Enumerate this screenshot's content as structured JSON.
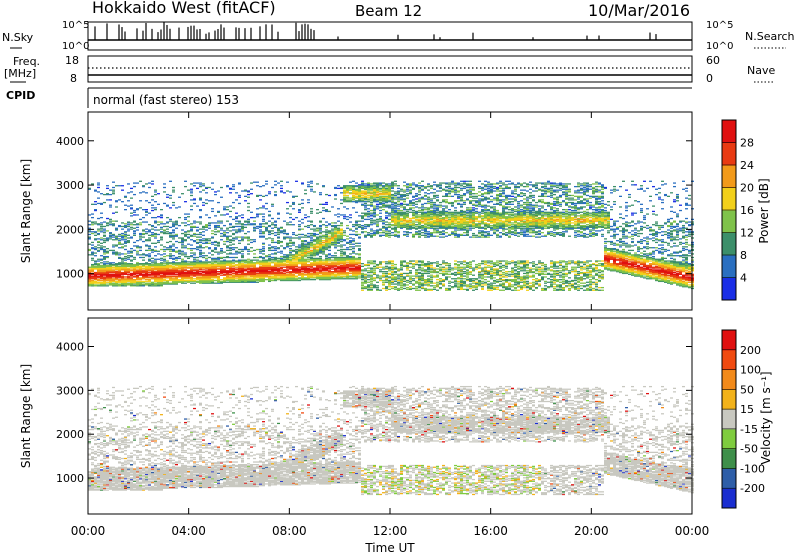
{
  "header": {
    "station": "Hokkaido West (fitACF)",
    "beam": "Beam 12",
    "date": "10/Mar/2016"
  },
  "top_panels": {
    "nsky_label": "N.Sky",
    "nsearch_label": "N.Search",
    "nsky_ticks": [
      "10^5",
      "10^0"
    ],
    "nsearch_ticks": [
      "10^5",
      "10^0"
    ],
    "freq_label_line1": "Freq.",
    "freq_label_line2": "[MHz]",
    "freq_ticks": [
      "18",
      "8"
    ],
    "nave_label": "Nave",
    "nave_ticks": [
      "60",
      "0"
    ],
    "cpid_label": "CPID",
    "cpid_text": "normal (fast stereo) 153"
  },
  "chart_data": [
    {
      "type": "heatmap",
      "name": "power",
      "ylabel": "Slant Range [km]",
      "y_ticks": [
        "1000",
        "2000",
        "3000",
        "4000"
      ],
      "ylim": [
        180,
        4650
      ],
      "colorbar_label": "Power [dB]",
      "colorbar_ticks": [
        "4",
        "8",
        "12",
        "16",
        "20",
        "24",
        "28"
      ],
      "colorbar_colors": [
        "#1a2ee6",
        "#2a6fc0",
        "#3c8f6a",
        "#7fc24a",
        "#f2d01a",
        "#f29a1a",
        "#e83a12",
        "#e01010"
      ]
    },
    {
      "type": "heatmap",
      "name": "velocity",
      "ylabel": "Slant Range [km]",
      "y_ticks": [
        "1000",
        "2000",
        "3000",
        "4000"
      ],
      "ylim": [
        180,
        4650
      ],
      "colorbar_label": "Velocity [m s⁻¹]",
      "colorbar_ticks": [
        "200",
        "100",
        "50",
        "15",
        "-15",
        "-50",
        "-100",
        "-200"
      ],
      "colorbar_colors": [
        "#1a2ed0",
        "#2e5ea8",
        "#3e8f4a",
        "#7fcc3e",
        "#c8c8c0",
        "#f2b21a",
        "#f28a1a",
        "#f04a10",
        "#e01010"
      ]
    }
  ],
  "x_axis": {
    "ticks": [
      "00:00",
      "04:00",
      "08:00",
      "12:00",
      "16:00",
      "20:00",
      "00:00"
    ],
    "label": "Time UT"
  }
}
